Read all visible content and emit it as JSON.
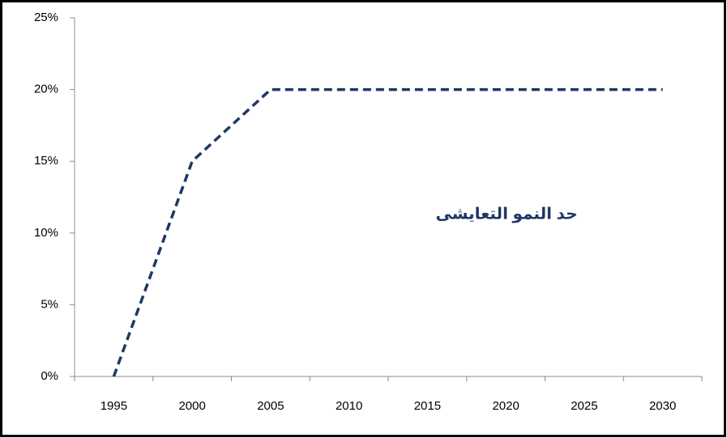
{
  "chart_data": {
    "type": "line",
    "categories": [
      "1995",
      "2000",
      "2005",
      "2010",
      "2015",
      "2020",
      "2025",
      "2030"
    ],
    "series": [
      {
        "name": null,
        "color": "#1f3864",
        "values": [
          0,
          15,
          20,
          20,
          20,
          20,
          20,
          20
        ]
      }
    ],
    "ylim": [
      0,
      25
    ],
    "yticks": [
      {
        "value": 0,
        "label": "0%"
      },
      {
        "value": 5,
        "label": "5%"
      },
      {
        "value": 10,
        "label": "10%"
      },
      {
        "value": 15,
        "label": "15%"
      },
      {
        "value": 20,
        "label": "20%"
      },
      {
        "value": 25,
        "label": "25%"
      }
    ],
    "annotation": "حد النمو التعايشى",
    "grid": false
  }
}
